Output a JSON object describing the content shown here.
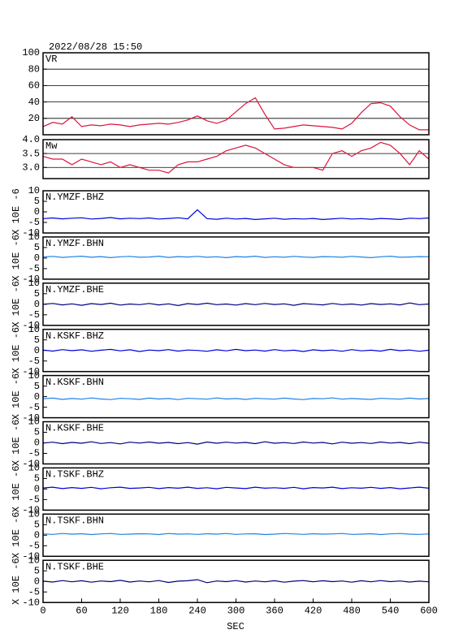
{
  "chart_data": {
    "type": "line",
    "title": "2022/08/28 15:50",
    "xlabel": "SEC",
    "xlim": [
      0,
      600
    ],
    "xticks": [
      0,
      60,
      120,
      180,
      240,
      300,
      360,
      420,
      480,
      540,
      600
    ],
    "x": [
      0,
      15,
      30,
      45,
      60,
      75,
      90,
      105,
      120,
      135,
      150,
      165,
      180,
      195,
      210,
      225,
      240,
      255,
      270,
      285,
      300,
      315,
      330,
      345,
      360,
      375,
      390,
      405,
      420,
      435,
      450,
      465,
      480,
      495,
      510,
      525,
      540,
      555,
      570,
      585,
      600
    ],
    "panels": [
      {
        "label": "VR",
        "color": "#dc143c",
        "grid": true,
        "ylim": [
          0,
          100
        ],
        "yticks": [
          20,
          40,
          60,
          80,
          100
        ],
        "values": [
          10,
          15,
          13,
          22,
          10,
          12,
          11,
          13,
          12,
          10,
          12,
          13,
          14,
          13,
          15,
          18,
          23,
          17,
          14,
          18,
          28,
          38,
          45,
          25,
          7,
          8,
          10,
          12,
          11,
          10,
          9,
          7,
          14,
          27,
          38,
          39,
          35,
          22,
          12,
          6,
          6
        ]
      },
      {
        "label": "Mw",
        "color": "#dc143c",
        "grid": true,
        "ylim": [
          2.6,
          4.0
        ],
        "yticks": [
          {
            "value": 3,
            "label": "3.0"
          },
          3.5,
          {
            "value": 4,
            "label": "4.0"
          }
        ],
        "values": [
          3.4,
          3.3,
          3.3,
          3.1,
          3.3,
          3.2,
          3.1,
          3.2,
          3.0,
          3.1,
          3.0,
          2.9,
          2.9,
          2.8,
          3.1,
          3.2,
          3.2,
          3.3,
          3.4,
          3.6,
          3.7,
          3.8,
          3.7,
          3.5,
          3.3,
          3.1,
          3.0,
          3.0,
          3.0,
          2.9,
          3.5,
          3.6,
          3.4,
          3.6,
          3.7,
          3.9,
          3.8,
          3.5,
          3.1,
          3.6,
          3.3
        ]
      },
      {
        "label": "N.YMZF.BHZ",
        "ylabel": "X 10E -6",
        "color": "#0000dd",
        "ylim": [
          -10,
          10
        ],
        "yticks": [
          -10,
          -5,
          0,
          5,
          10
        ],
        "values": [
          -3.2,
          -2.9,
          -3.3,
          -3.0,
          -2.8,
          -3.4,
          -3.1,
          -2.7,
          -3.3,
          -3.0,
          -3.2,
          -2.9,
          -3.4,
          -3.1,
          -2.8,
          -3.3,
          1.0,
          -3.2,
          -3.5,
          -3.0,
          -3.4,
          -3.1,
          -3.6,
          -3.3,
          -3.0,
          -3.5,
          -3.2,
          -3.4,
          -3.1,
          -3.6,
          -3.3,
          -3.0,
          -3.4,
          -3.2,
          -3.5,
          -3.1,
          -3.3,
          -3.6,
          -3.0,
          -3.2,
          -2.9
        ]
      },
      {
        "label": "N.YMZF.BHN",
        "ylabel": "X 10E -6",
        "color": "#1e82e6",
        "ylim": [
          -10,
          10
        ],
        "yticks": [
          -10,
          -5,
          0,
          5,
          10
        ],
        "values": [
          0.5,
          0.8,
          0.3,
          0.6,
          0.9,
          0.4,
          0.7,
          0.2,
          0.6,
          0.8,
          0.4,
          0.5,
          0.9,
          0.3,
          0.7,
          0.5,
          0.8,
          0.4,
          0.6,
          0.2,
          0.7,
          0.5,
          0.9,
          0.3,
          0.6,
          0.4,
          0.8,
          0.5,
          0.3,
          0.7,
          0.6,
          0.4,
          0.8,
          0.5,
          0.2,
          0.6,
          0.9,
          0.4,
          0.5,
          0.7,
          0.6
        ]
      },
      {
        "label": "N.YMZF.BHE",
        "ylabel": "X 10E -6",
        "color": "#000080",
        "ylim": [
          -10,
          10
        ],
        "yticks": [
          -10,
          -5,
          0,
          5,
          10
        ],
        "values": [
          0.0,
          0.4,
          -0.3,
          0.2,
          -0.5,
          0.3,
          -0.1,
          0.5,
          -0.4,
          0.1,
          -0.2,
          0.4,
          -0.3,
          0.2,
          -0.6,
          0.3,
          -0.1,
          0.5,
          -0.2,
          0.1,
          -0.4,
          0.3,
          -0.2,
          0.4,
          -0.1,
          0.2,
          -0.5,
          0.3,
          0.0,
          -0.3,
          0.4,
          -0.2,
          0.1,
          -0.4,
          0.3,
          -0.1,
          0.2,
          -0.3,
          0.6,
          -0.2,
          0.1
        ]
      },
      {
        "label": "N.KSKF.BHZ",
        "ylabel": "X 10E -6",
        "color": "#0000dd",
        "ylim": [
          -10,
          10
        ],
        "yticks": [
          -10,
          -5,
          0,
          5,
          10
        ],
        "values": [
          0.2,
          -0.3,
          0.4,
          -0.1,
          0.3,
          -0.4,
          0.1,
          0.5,
          -0.2,
          0.3,
          -0.5,
          0.2,
          -0.1,
          0.4,
          -0.3,
          0.2,
          0.0,
          -0.4,
          0.3,
          -0.2,
          0.5,
          -0.1,
          0.2,
          -0.3,
          0.4,
          -0.2,
          0.1,
          -0.5,
          0.3,
          -0.1,
          0.2,
          -0.4,
          0.4,
          -0.2,
          0.1,
          -0.3,
          0.5,
          -0.1,
          0.2,
          -0.4,
          0.1
        ]
      },
      {
        "label": "N.KSKF.BHN",
        "ylabel": "X 10E -6",
        "color": "#1e82e6",
        "ylim": [
          -10,
          10
        ],
        "yticks": [
          -10,
          -5,
          0,
          5,
          10
        ],
        "values": [
          -1.0,
          -0.7,
          -1.3,
          -0.9,
          -1.2,
          -0.6,
          -1.1,
          -1.4,
          -0.8,
          -1.0,
          -1.3,
          -0.7,
          -1.1,
          -0.9,
          -1.4,
          -0.8,
          -1.0,
          -1.2,
          -0.6,
          -1.1,
          -0.9,
          -1.3,
          -0.8,
          -1.0,
          -1.2,
          -0.7,
          -1.1,
          -1.4,
          -0.9,
          -1.0,
          -0.6,
          -1.2,
          -0.9,
          -1.1,
          -1.3,
          -0.8,
          -1.0,
          -1.2,
          -0.7,
          -1.1,
          -0.9
        ]
      },
      {
        "label": "N.KSKF.BHE",
        "ylabel": "X 10E -6",
        "color": "#000080",
        "ylim": [
          -10,
          10
        ],
        "yticks": [
          -10,
          -5,
          0,
          5,
          10
        ],
        "values": [
          -0.1,
          0.3,
          -0.4,
          0.2,
          -0.2,
          0.5,
          -0.3,
          0.1,
          -0.5,
          0.3,
          -0.1,
          0.4,
          -0.2,
          0.2,
          -0.4,
          0.1,
          -0.6,
          0.4,
          -0.2,
          0.3,
          -0.1,
          0.2,
          -0.4,
          0.5,
          -0.2,
          0.1,
          -0.3,
          0.4,
          -0.1,
          0.2,
          -0.5,
          0.3,
          -0.2,
          0.1,
          -0.3,
          0.4,
          -0.1,
          0.2,
          -0.4,
          0.3,
          -0.2
        ]
      },
      {
        "label": "N.TSKF.BHZ",
        "ylabel": "X 10E -6",
        "color": "#0000dd",
        "ylim": [
          -10,
          10
        ],
        "yticks": [
          -10,
          -5,
          0,
          5,
          10
        ],
        "values": [
          0.5,
          0.9,
          0.2,
          0.7,
          0.3,
          0.8,
          0.1,
          0.6,
          0.9,
          0.3,
          0.5,
          0.8,
          0.2,
          0.7,
          0.4,
          0.9,
          0.3,
          0.6,
          0.1,
          0.8,
          0.5,
          0.2,
          0.9,
          0.4,
          0.6,
          0.3,
          0.8,
          0.1,
          0.7,
          0.5,
          0.9,
          0.2,
          0.6,
          0.4,
          0.8,
          0.3,
          0.7,
          0.1,
          0.5,
          0.9,
          0.4
        ]
      },
      {
        "label": "N.TSKF.BHN",
        "ylabel": "X 10E -6",
        "color": "#1e82e6",
        "ylim": [
          -10,
          10
        ],
        "yticks": [
          -10,
          -5,
          0,
          5,
          10
        ],
        "values": [
          0.6,
          0.4,
          0.8,
          0.5,
          0.7,
          0.3,
          0.6,
          0.8,
          0.4,
          0.5,
          0.7,
          0.6,
          0.3,
          0.8,
          0.5,
          0.6,
          0.4,
          0.7,
          0.5,
          0.8,
          0.4,
          0.6,
          0.7,
          0.3,
          0.5,
          0.8,
          0.6,
          0.4,
          0.7,
          0.5,
          0.6,
          0.8,
          0.4,
          0.5,
          0.7,
          0.3,
          0.6,
          0.8,
          0.5,
          0.4,
          0.6
        ]
      },
      {
        "label": "N.TSKF.BHE",
        "ylabel": "X 10E -6",
        "color": "#000080",
        "ylim": [
          -10,
          10
        ],
        "yticks": [
          -10,
          -5,
          0,
          5,
          10
        ],
        "values": [
          0.1,
          -0.3,
          0.4,
          -0.2,
          0.3,
          -0.4,
          0.2,
          -0.1,
          0.5,
          -0.3,
          0.2,
          -0.2,
          0.4,
          -0.5,
          0.1,
          0.3,
          0.8,
          -0.6,
          0.2,
          -0.1,
          0.4,
          -0.3,
          0.2,
          -0.2,
          0.3,
          -0.4,
          0.1,
          0.4,
          -0.2,
          0.3,
          -0.1,
          0.2,
          -0.4,
          0.3,
          -0.2,
          0.4,
          -0.1,
          0.2,
          -0.3,
          0.1,
          -0.2
        ]
      }
    ]
  }
}
